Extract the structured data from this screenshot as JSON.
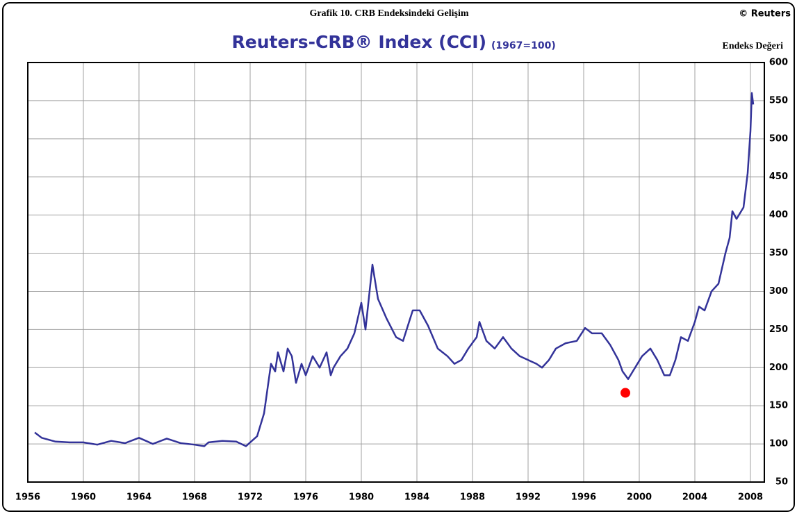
{
  "chart_data": {
    "type": "line",
    "header": "Grafik 10. CRB Endeksindeki Gelişim",
    "credit": "© Reuters",
    "title": "Reuters-CRB® Index (CCI)",
    "subtitle": "(1967=100)",
    "y_axis_label": "Endeks Değeri",
    "x": [
      1956.5,
      1957,
      1958,
      1959,
      1960,
      1961,
      1962,
      1963,
      1964,
      1964.5,
      1965,
      1966,
      1967,
      1968,
      1968.7,
      1969,
      1970,
      1971,
      1971.7,
      1972,
      1972.5,
      1973,
      1973.5,
      1973.8,
      1974,
      1974.4,
      1974.7,
      1975,
      1975.3,
      1975.7,
      1976,
      1976.5,
      1977,
      1977.5,
      1977.8,
      1978,
      1978.5,
      1979,
      1979.5,
      1980,
      1980.3,
      1980.8,
      1981.2,
      1981.8,
      1982.5,
      1983,
      1983.7,
      1984.2,
      1984.8,
      1985.5,
      1986.2,
      1986.7,
      1987.2,
      1987.7,
      1988.3,
      1988.5,
      1989,
      1989.6,
      1990.2,
      1990.8,
      1991.4,
      1992,
      1992.6,
      1993,
      1993.5,
      1994,
      1994.7,
      1995.5,
      1996.1,
      1996.6,
      1997.3,
      1997.9,
      1998.5,
      1998.8,
      1999.2,
      1999.7,
      2000.2,
      2000.8,
      2001.3,
      2001.8,
      2002.2,
      2002.6,
      2003,
      2003.5,
      2004,
      2004.3,
      2004.7,
      2005.2,
      2005.7,
      2006.2,
      2006.5,
      2006.7,
      2007,
      2007.5,
      2007.8,
      2008.0,
      2008.1,
      2008.2
    ],
    "series": [
      {
        "name": "Reuters-CRB Index",
        "color": "#333399",
        "values": [
          115,
          108,
          103,
          102,
          102,
          99,
          104,
          101,
          108,
          104,
          100,
          107,
          101,
          99,
          97,
          102,
          104,
          103,
          97,
          102,
          110,
          140,
          205,
          195,
          220,
          195,
          225,
          215,
          180,
          205,
          190,
          215,
          200,
          220,
          190,
          200,
          215,
          225,
          245,
          285,
          250,
          335,
          290,
          265,
          240,
          235,
          275,
          275,
          255,
          225,
          215,
          205,
          210,
          225,
          240,
          260,
          235,
          225,
          240,
          225,
          215,
          210,
          205,
          200,
          210,
          225,
          232,
          235,
          252,
          245,
          245,
          230,
          210,
          195,
          185,
          200,
          215,
          225,
          210,
          190,
          190,
          210,
          240,
          235,
          260,
          280,
          275,
          300,
          310,
          350,
          370,
          405,
          395,
          410,
          455,
          510,
          560,
          545
        ]
      }
    ],
    "marker": {
      "x": 1999,
      "y": 167,
      "color": "#ff0000"
    },
    "xlim": [
      1956,
      2009
    ],
    "xticks": [
      1956,
      1960,
      1964,
      1968,
      1972,
      1976,
      1980,
      1984,
      1988,
      1992,
      1996,
      2000,
      2004,
      2008
    ],
    "ylim": [
      50,
      600
    ],
    "yticks": [
      50,
      100,
      150,
      200,
      250,
      300,
      350,
      400,
      450,
      500,
      550,
      600
    ],
    "grid": true
  }
}
